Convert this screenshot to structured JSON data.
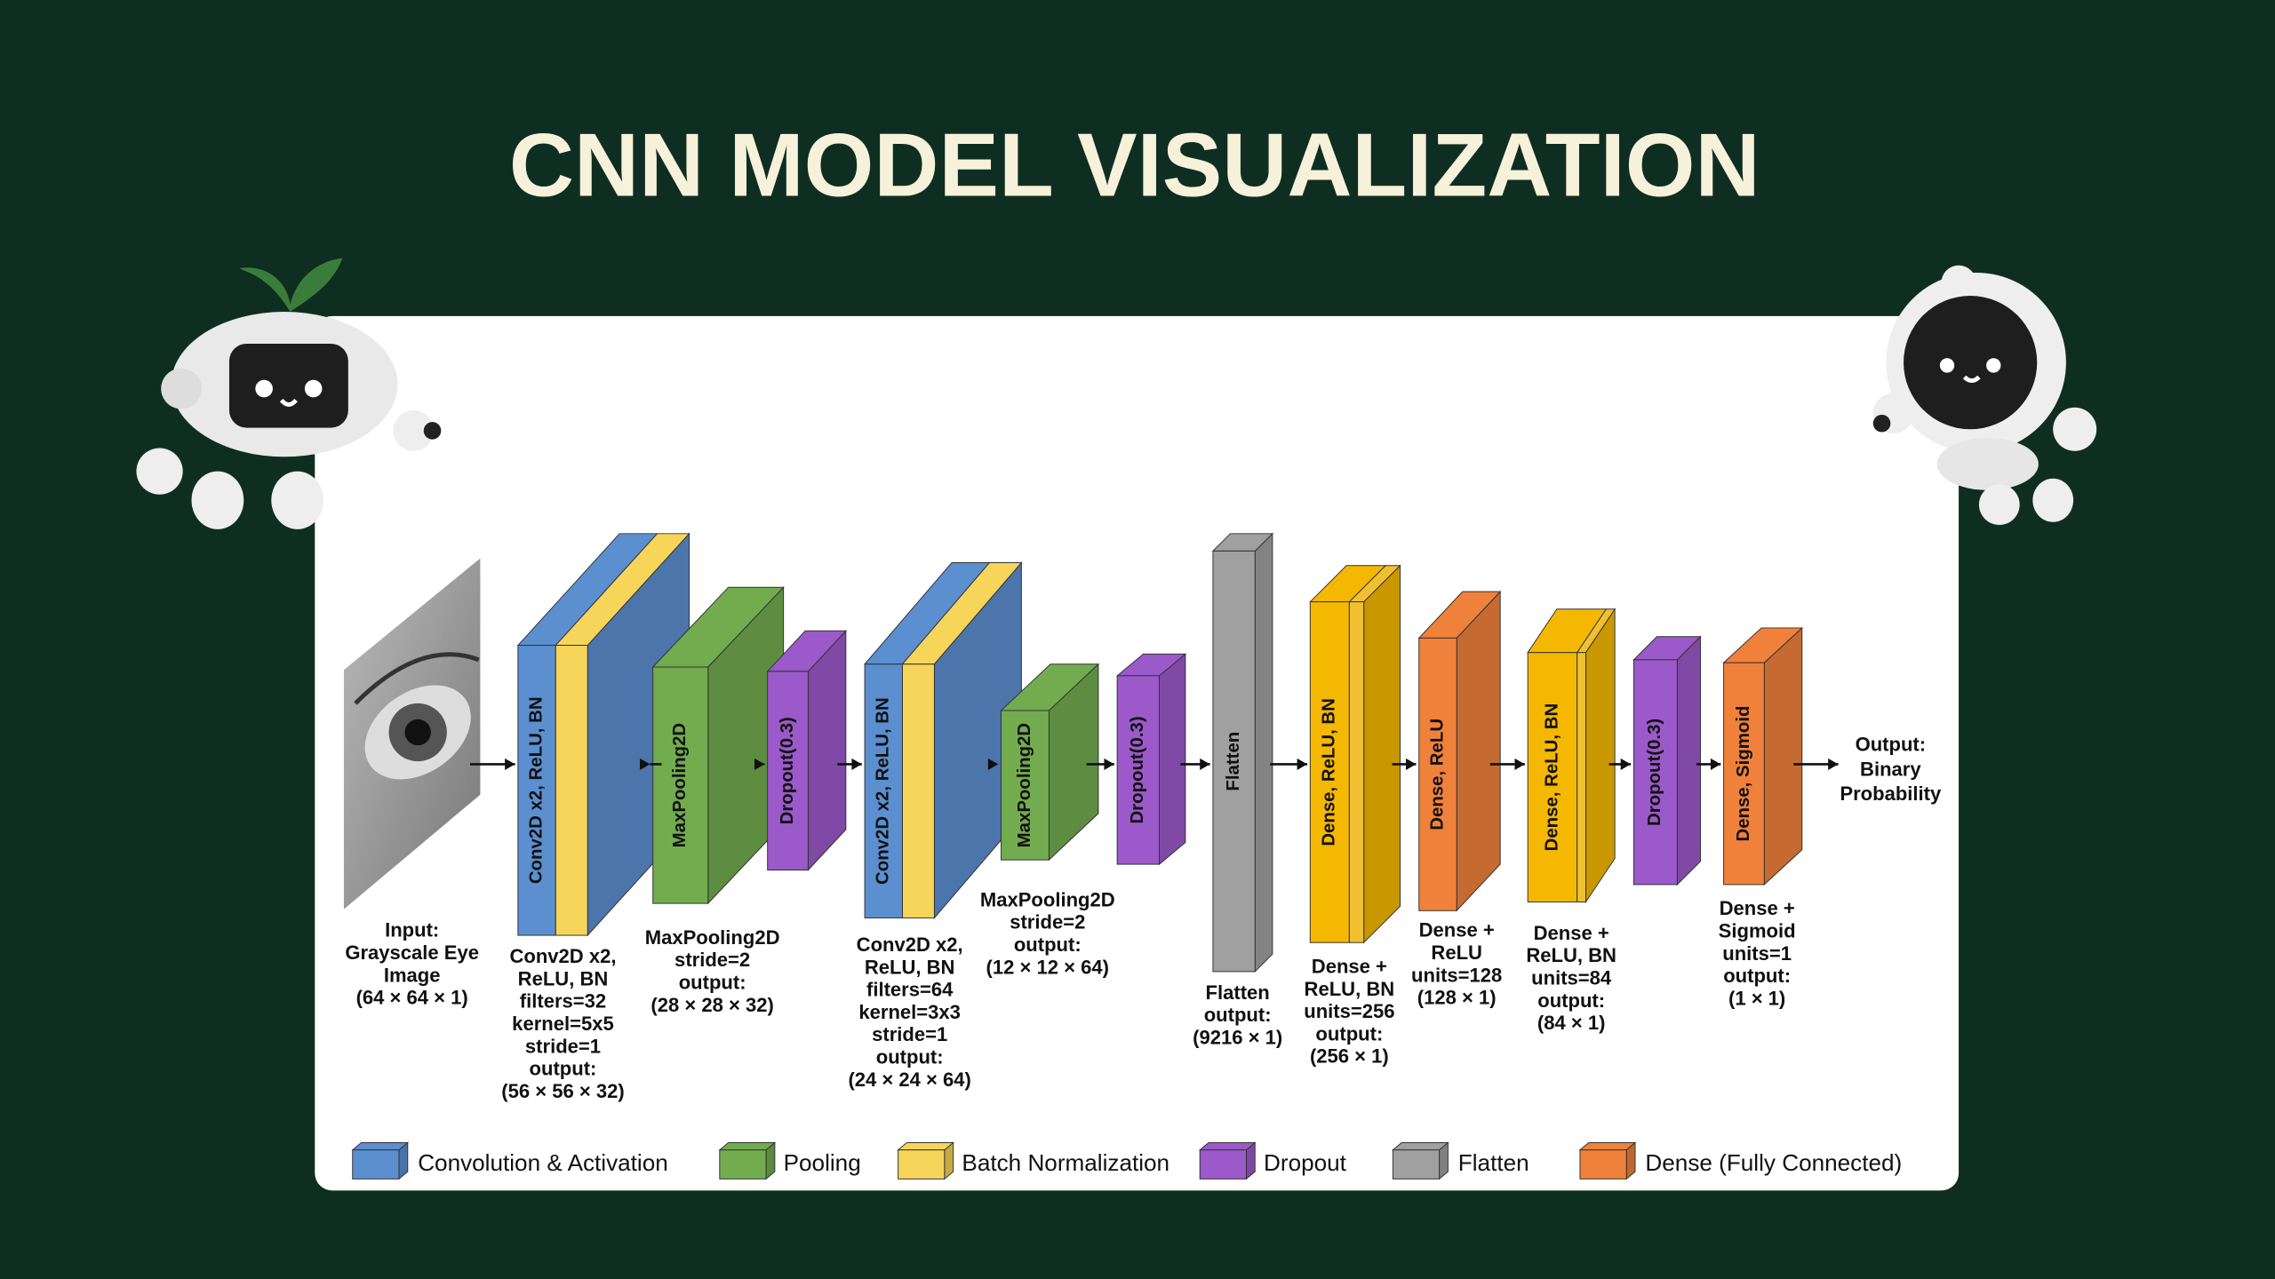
{
  "title": "CNN MODEL VISUALIZATION",
  "input": {
    "caption": [
      "Input:",
      "Grayscale Eye",
      "Image",
      "(64 × 64 × 1)"
    ]
  },
  "layers": [
    {
      "label": "Conv2D x2, ReLU, BN",
      "caption": [
        "Conv2D x2,",
        "ReLU, BN",
        "filters=32",
        "kernel=5x5",
        "stride=1",
        "output:",
        "(56 × 56 × 32)"
      ]
    },
    {
      "label": "MaxPooling2D",
      "caption": [
        "MaxPooling2D",
        "stride=2",
        "output:",
        "(28 × 28 × 32)"
      ]
    },
    {
      "label": "Dropout(0.3)"
    },
    {
      "label": "Conv2D x2, ReLU, BN",
      "caption": [
        "Conv2D x2,",
        "ReLU, BN",
        "filters=64",
        "kernel=3x3",
        "stride=1",
        "output:",
        "(24 × 24 × 64)"
      ]
    },
    {
      "label": "MaxPooling2D",
      "caption": [
        "MaxPooling2D",
        "stride=2",
        "output:",
        "(12 × 12 × 64)"
      ]
    },
    {
      "label": "Dropout(0.3)"
    },
    {
      "label": "Flatten",
      "caption": [
        "Flatten",
        "output:",
        "(9216 × 1)"
      ]
    },
    {
      "label": "Dense, ReLU, BN",
      "caption": [
        "Dense +",
        "ReLU, BN",
        "units=256",
        "output:",
        "(256 × 1)"
      ]
    },
    {
      "label": "Dense, ReLU",
      "caption": [
        "Dense +",
        "ReLU",
        "units=128",
        "(128 × 1)"
      ]
    },
    {
      "label": "Dense, ReLU, BN",
      "caption": [
        "Dense +",
        "ReLU, BN",
        "units=84",
        "output:",
        "(84 × 1)"
      ]
    },
    {
      "label": "Dropout(0.3)"
    },
    {
      "label": "Dense, Sigmoid",
      "caption": [
        "Dense +",
        "Sigmoid",
        "units=1",
        "output:",
        "(1 × 1)"
      ]
    }
  ],
  "output": [
    "Output:",
    "Binary",
    "Probability"
  ],
  "legend": [
    {
      "name": "Convolution & Activation"
    },
    {
      "name": "Pooling"
    },
    {
      "name": "Batch Normalization"
    },
    {
      "name": "Dropout"
    },
    {
      "name": "Flatten"
    },
    {
      "name": "Dense (Fully Connected)"
    }
  ]
}
